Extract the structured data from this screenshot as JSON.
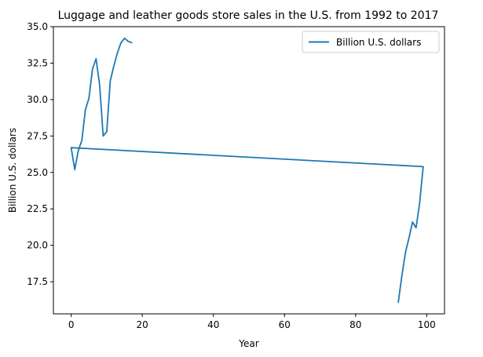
{
  "chart_data": {
    "type": "line",
    "title": "Luggage and leather goods store sales in the U.S. from 1992 to 2017",
    "xlabel": "Year",
    "ylabel": "Billion U.S. dollars",
    "xlim": [
      -5,
      105
    ],
    "ylim": [
      15.3,
      35.0
    ],
    "xticks": [
      0,
      20,
      40,
      60,
      80,
      100
    ],
    "xtick_labels": [
      "0",
      "20",
      "40",
      "60",
      "80",
      "100"
    ],
    "yticks": [
      17.5,
      20.0,
      22.5,
      25.0,
      27.5,
      30.0,
      32.5,
      35.0
    ],
    "ytick_labels": [
      "17.5",
      "20.0",
      "22.5",
      "25.0",
      "27.5",
      "30.0",
      "32.5",
      "35.0"
    ],
    "grid": false,
    "legend_position": "upper right",
    "series": [
      {
        "name": "Billion U.S. dollars",
        "color": "#1f77b4",
        "x": [
          92,
          93,
          94,
          95,
          96,
          97,
          98,
          99,
          0,
          1,
          2,
          3,
          4,
          5,
          6,
          7,
          8,
          9,
          10,
          11,
          12,
          13,
          14,
          15,
          16,
          17
        ],
        "y": [
          16.1,
          17.9,
          19.5,
          20.5,
          21.6,
          21.2,
          22.9,
          25.4,
          26.7,
          25.2,
          26.5,
          27.2,
          29.3,
          30.1,
          32.1,
          32.8,
          31.0,
          27.5,
          27.8,
          31.3,
          32.3,
          33.2,
          33.9,
          34.2,
          34.0,
          33.9
        ]
      }
    ]
  }
}
